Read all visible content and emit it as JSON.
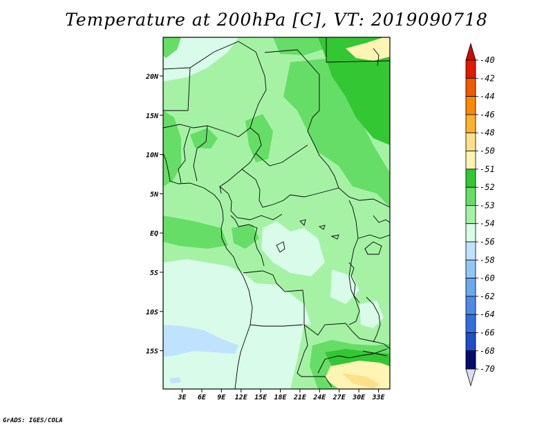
{
  "title": "Temperature at 200hPa [C], VT: 2019090718",
  "credit": "GrADS: IGES/COLA",
  "lat_labels": [
    "20N",
    "15N",
    "10N",
    "5N",
    "EQ",
    "5S",
    "10S",
    "15S"
  ],
  "lon_labels": [
    "3E",
    "6E",
    "9E",
    "12E",
    "15E",
    "18E",
    "21E",
    "24E",
    "27E",
    "30E",
    "33E"
  ],
  "colorbar": {
    "labels": [
      "-40",
      "-42",
      "-44",
      "-46",
      "-48",
      "-50",
      "-51",
      "-52",
      "-53",
      "-54",
      "-56",
      "-58",
      "-60",
      "-62",
      "-64",
      "-66",
      "-68",
      "-70"
    ],
    "colors": [
      "#e11a00",
      "#f05a00",
      "#f78a00",
      "#fbb22c",
      "#fde08a",
      "#fef5b4",
      "#33c733",
      "#66dd66",
      "#a5f2a5",
      "#d9fbe9",
      "#bfe3ff",
      "#90c8f5",
      "#6aa9ee",
      "#4f8ae6",
      "#336ddf",
      "#1d50c6",
      "#0e2ca1",
      "#070a6d"
    ],
    "top_color": "#cc0a00",
    "bottom_color": "#dcdcf4"
  }
}
